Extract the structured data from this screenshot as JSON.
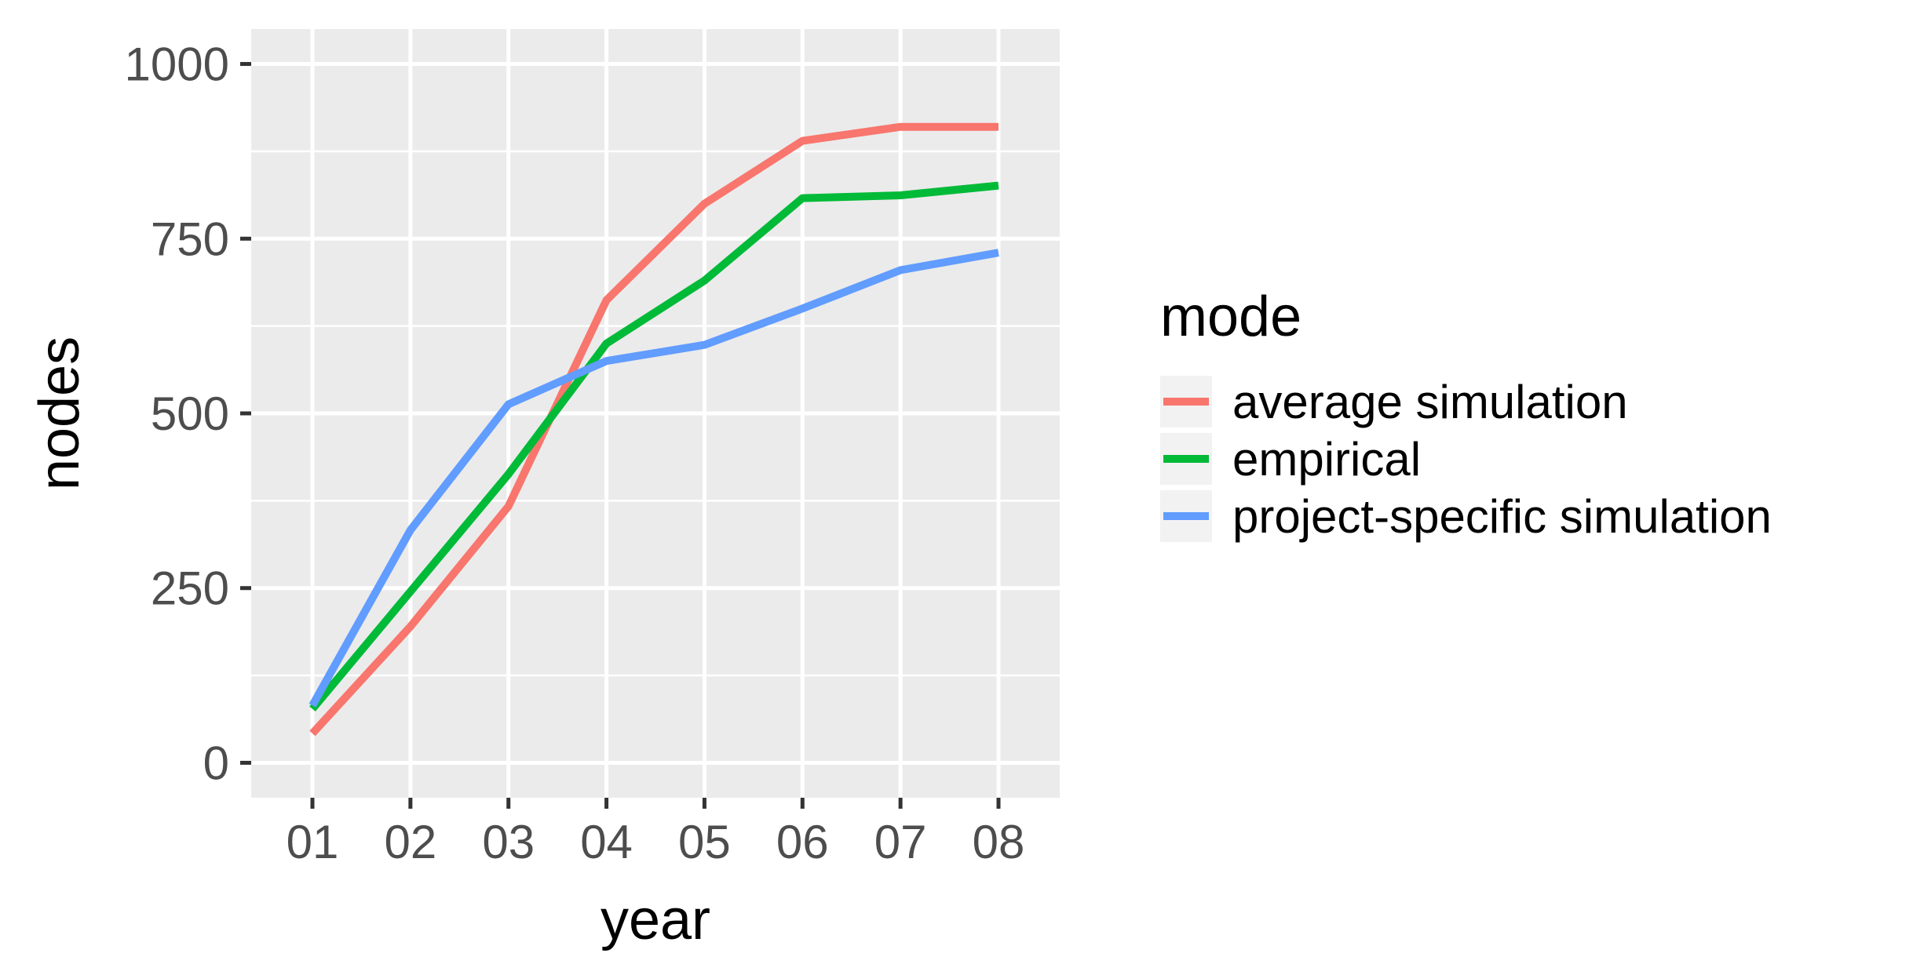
{
  "chart_data": {
    "type": "line",
    "title": "",
    "xlabel": "year",
    "ylabel": "nodes",
    "categories": [
      "01",
      "02",
      "03",
      "04",
      "05",
      "06",
      "07",
      "08"
    ],
    "ylim": [
      -50,
      1050
    ],
    "y_ticks": [
      0,
      250,
      500,
      750,
      1000
    ],
    "y_tick_labels": [
      "0",
      "250",
      "500",
      "750",
      "1000"
    ],
    "grid": true,
    "panel_background": "#ebebeb",
    "grid_color": "#ffffff",
    "legend_title": "mode",
    "legend_position": "right",
    "series": [
      {
        "name": "average simulation",
        "color": "#f8766d",
        "values": [
          42,
          195,
          367,
          662,
          800,
          890,
          910,
          910
        ]
      },
      {
        "name": "empirical",
        "color": "#00ba38",
        "values": [
          77,
          245,
          413,
          600,
          690,
          808,
          812,
          826
        ]
      },
      {
        "name": "project-specific simulation",
        "color": "#619cff",
        "values": [
          82,
          333,
          513,
          575,
          598,
          650,
          705,
          730
        ]
      }
    ]
  }
}
